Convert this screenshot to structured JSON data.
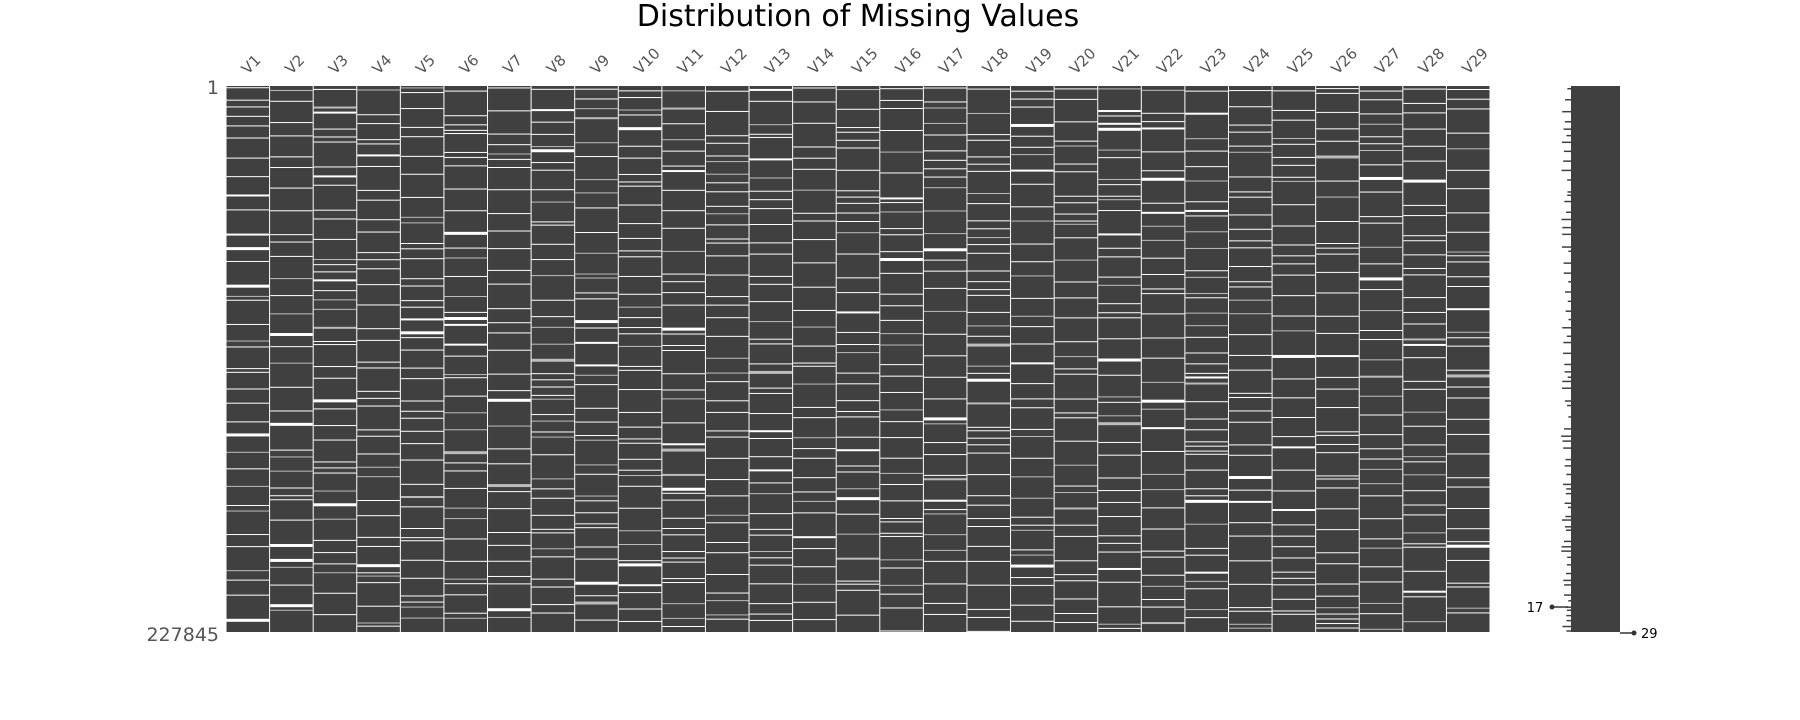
{
  "chart_data": {
    "type": "heatmap",
    "title": "Distribution of Missing Values",
    "columns": [
      "V1",
      "V2",
      "V3",
      "V4",
      "V5",
      "V6",
      "V7",
      "V8",
      "V9",
      "V10",
      "V11",
      "V12",
      "V13",
      "V14",
      "V15",
      "V16",
      "V17",
      "V18",
      "V19",
      "V20",
      "V21",
      "V22",
      "V23",
      "V24",
      "V25",
      "V26",
      "V27",
      "V28",
      "V29"
    ],
    "row_range": [
      1,
      227845
    ],
    "row_labels": [
      "1",
      "227845"
    ],
    "sparkline": {
      "min_label": "17",
      "max_label": "29",
      "min_value": 17,
      "max_value": 29
    },
    "colors": {
      "present": "#404040",
      "missing": "#ffffff"
    }
  }
}
